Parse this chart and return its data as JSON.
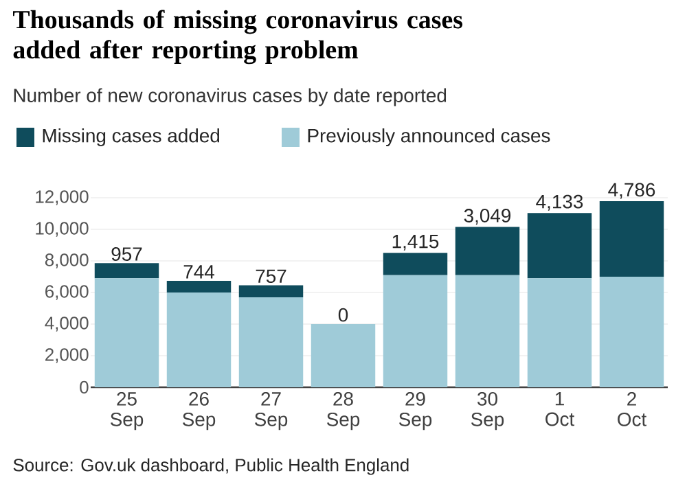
{
  "chart_data": {
    "type": "bar",
    "title": "Thousands of missing coronavirus cases added after reporting problem",
    "subtitle": "Number of new coronavirus cases by date reported",
    "categories": [
      "25 Sep",
      "26 Sep",
      "27 Sep",
      "28 Sep",
      "29 Sep",
      "30 Sep",
      "1 Oct",
      "2 Oct"
    ],
    "stacked": true,
    "series": [
      {
        "name": "Previously announced cases",
        "color": "#9fcbd8",
        "values": [
          6900,
          6000,
          5700,
          4000,
          7100,
          7100,
          6900,
          7000
        ]
      },
      {
        "name": "Missing cases added",
        "color": "#0f4c5c",
        "values": [
          957,
          744,
          757,
          0,
          1415,
          3049,
          4133,
          4786
        ],
        "value_labels": [
          "957",
          "744",
          "757",
          "0",
          "1,415",
          "3,049",
          "4,133",
          "4,786"
        ]
      }
    ],
    "ylim": [
      0,
      12000
    ],
    "yticks": [
      {
        "value": 0,
        "label": "0"
      },
      {
        "value": 2000,
        "label": "2,000"
      },
      {
        "value": 4000,
        "label": "4,000"
      },
      {
        "value": 6000,
        "label": "6,000"
      },
      {
        "value": 8000,
        "label": "8,000"
      },
      {
        "value": 10000,
        "label": "10,000"
      },
      {
        "value": 12000,
        "label": "12,000"
      }
    ],
    "grid": "y",
    "legend": "top left",
    "annotations": [
      "Source: Gov.uk dashboard, Public Health England"
    ]
  }
}
